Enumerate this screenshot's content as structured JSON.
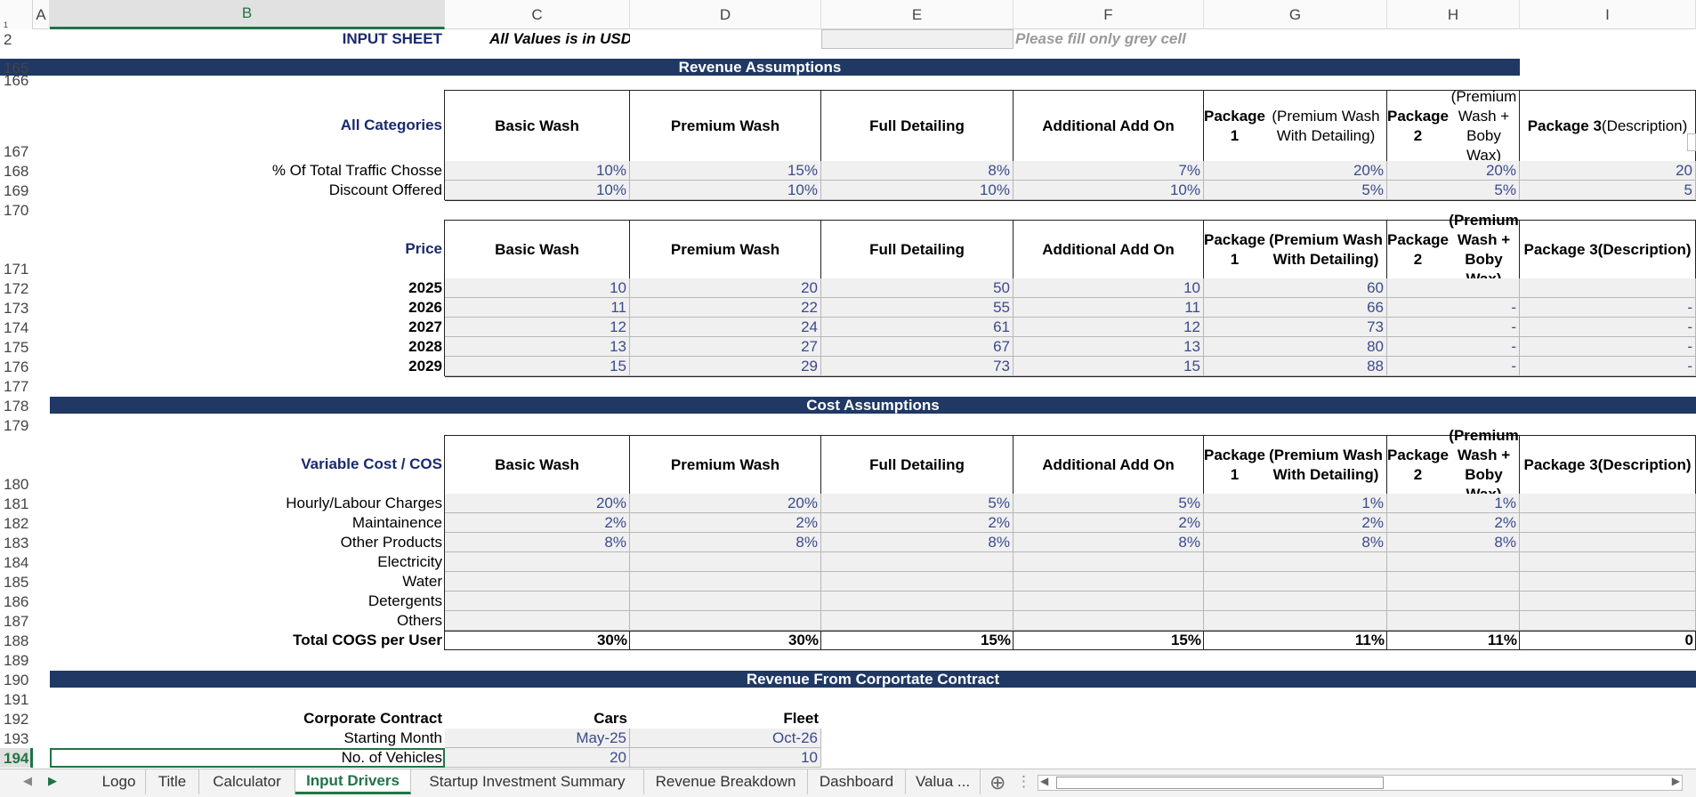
{
  "columns": [
    "A",
    "B",
    "C",
    "D",
    "E",
    "F",
    "G",
    "H",
    "I"
  ],
  "selected_column": "B",
  "row_numbers": [
    "1",
    "2",
    "165",
    "166",
    "167",
    "168",
    "169",
    "170",
    "171",
    "172",
    "173",
    "174",
    "175",
    "176",
    "177",
    "178",
    "179",
    "180",
    "181",
    "182",
    "183",
    "184",
    "185",
    "186",
    "187",
    "188",
    "189",
    "190",
    "191",
    "192",
    "193",
    "194"
  ],
  "selected_row": "194",
  "header": {
    "title": "INPUT SHEET",
    "subtitle": "All Values is in USD",
    "note": "Please fill only grey cell"
  },
  "revenue": {
    "band": "Revenue Assumptions",
    "categories_label": "All Categories",
    "price_label": "Price",
    "col_headers": {
      "c": "Basic Wash",
      "d": "Premium Wash",
      "e": "Full Detailing",
      "f": "Additional Add On",
      "g1": "Package 1",
      "g2": "(Premium Wash With Detailing)",
      "h1": "Package 2",
      "h2": "(Premium Wash + Boby Wax)",
      "i1": "Package 3",
      "i2": "(Description)"
    },
    "traffic_label": "% Of Total Traffic Chosse",
    "traffic": [
      "10%",
      "15%",
      "8%",
      "7%",
      "20%",
      "20%",
      "20"
    ],
    "discount_label": "Discount Offered",
    "discount": [
      "10%",
      "10%",
      "10%",
      "10%",
      "5%",
      "5%",
      "5"
    ],
    "prices": [
      {
        "year": "2025",
        "values": [
          "10",
          "20",
          "50",
          "10",
          "60",
          "",
          ""
        ]
      },
      {
        "year": "2026",
        "values": [
          "11",
          "22",
          "55",
          "11",
          "66",
          "-",
          "-"
        ]
      },
      {
        "year": "2027",
        "values": [
          "12",
          "24",
          "61",
          "12",
          "73",
          "-",
          "-"
        ]
      },
      {
        "year": "2028",
        "values": [
          "13",
          "27",
          "67",
          "13",
          "80",
          "-",
          "-"
        ]
      },
      {
        "year": "2029",
        "values": [
          "15",
          "29",
          "73",
          "15",
          "88",
          "-",
          "-"
        ]
      }
    ]
  },
  "cost": {
    "band": "Cost Assumptions",
    "label": "Variable Cost / COS",
    "rows": [
      {
        "label": "Hourly/Labour Charges",
        "values": [
          "20%",
          "20%",
          "5%",
          "5%",
          "1%",
          "1%",
          ""
        ]
      },
      {
        "label": "Maintainence",
        "values": [
          "2%",
          "2%",
          "2%",
          "2%",
          "2%",
          "2%",
          ""
        ]
      },
      {
        "label": "Other Products",
        "values": [
          "8%",
          "8%",
          "8%",
          "8%",
          "8%",
          "8%",
          ""
        ]
      },
      {
        "label": "Electricity",
        "values": [
          "",
          "",
          "",
          "",
          "",
          "",
          ""
        ]
      },
      {
        "label": "Water",
        "values": [
          "",
          "",
          "",
          "",
          "",
          "",
          ""
        ]
      },
      {
        "label": "Detergents",
        "values": [
          "",
          "",
          "",
          "",
          "",
          "",
          ""
        ]
      },
      {
        "label": "Others",
        "values": [
          "",
          "",
          "",
          "",
          "",
          "",
          ""
        ]
      }
    ],
    "total_label": "Total COGS per User",
    "total": [
      "30%",
      "30%",
      "15%",
      "15%",
      "11%",
      "11%",
      "0"
    ]
  },
  "corporate": {
    "band": "Revenue From Corportate Contract",
    "label": "Corporate Contract",
    "col_cars": "Cars",
    "col_fleet": "Fleet",
    "starting_label": "Starting Month",
    "starting": [
      "May-25",
      "Oct-26"
    ],
    "vehicles_label": "No. of Vehicles",
    "vehicles": [
      "20",
      "10"
    ]
  },
  "tabs": [
    {
      "label": "Logo"
    },
    {
      "label": "Title"
    },
    {
      "label": "Calculator"
    },
    {
      "label": "Input Drivers"
    },
    {
      "label": "Startup Investment Summary"
    },
    {
      "label": "Revenue Breakdown"
    },
    {
      "label": "Dashboard"
    },
    {
      "label": "Valua ..."
    }
  ],
  "active_tab": "Input Drivers",
  "colors": {
    "band": "#1f3864",
    "input_fill": "#f0f0f0",
    "accent": "#217346"
  }
}
